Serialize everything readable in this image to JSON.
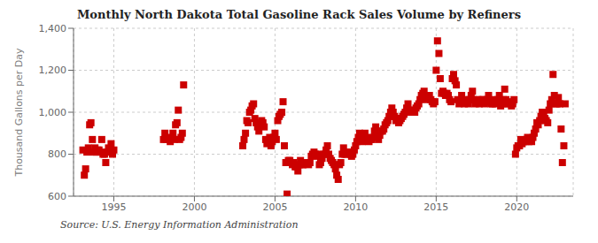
{
  "chart_data": {
    "type": "scatter",
    "title": "Monthly North Dakota Total Gasoline Rack Sales Volume by Refiners",
    "ylabel": "Thousand Gallons per Day",
    "annotations": [
      "Source: U.S. Energy Information Administration"
    ],
    "color": "#cc0000",
    "marker": "square",
    "grid": true,
    "xlim": [
      1992.5,
      2023.5
    ],
    "xticks": [
      1995,
      2000,
      2005,
      2010,
      2015,
      2020
    ],
    "ylim": [
      600,
      1400
    ],
    "yticks": [
      600,
      800,
      {
        "value": 1000,
        "label": "1,000"
      },
      {
        "value": 1200,
        "label": "1,200"
      },
      {
        "value": 1400,
        "label": "1,400"
      }
    ],
    "x": [
      1993.08,
      1993.17,
      1993.25,
      1993.33,
      1993.42,
      1993.5,
      1993.58,
      1993.67,
      1993.75,
      1993.83,
      1993.92,
      1994.0,
      1994.08,
      1994.17,
      1994.25,
      1994.33,
      1994.42,
      1994.5,
      1994.58,
      1994.67,
      1994.75,
      1994.83,
      1994.92,
      1995.0,
      1998.08,
      1998.17,
      1998.25,
      1998.33,
      1998.42,
      1998.5,
      1998.58,
      1998.67,
      1998.75,
      1998.83,
      1998.92,
      1999.0,
      1999.08,
      1999.17,
      1999.25,
      1999.33,
      2003.0,
      2003.08,
      2003.17,
      2003.25,
      2003.33,
      2003.42,
      2003.5,
      2003.58,
      2003.67,
      2003.75,
      2003.83,
      2003.92,
      2004.0,
      2004.08,
      2004.17,
      2004.25,
      2004.33,
      2004.42,
      2004.5,
      2004.58,
      2004.67,
      2004.75,
      2004.83,
      2004.92,
      2005.0,
      2005.08,
      2005.17,
      2005.25,
      2005.33,
      2005.42,
      2005.5,
      2005.58,
      2005.67,
      2005.75,
      2005.83,
      2005.92,
      2006.0,
      2006.08,
      2006.17,
      2006.25,
      2006.33,
      2006.42,
      2006.5,
      2006.58,
      2006.67,
      2006.75,
      2006.83,
      2006.92,
      2007.0,
      2007.08,
      2007.17,
      2007.25,
      2007.33,
      2007.42,
      2007.5,
      2007.58,
      2007.67,
      2007.75,
      2007.83,
      2007.92,
      2008.0,
      2008.08,
      2008.17,
      2008.25,
      2008.33,
      2008.42,
      2008.5,
      2008.58,
      2008.67,
      2008.75,
      2008.83,
      2008.92,
      2009.0,
      2009.08,
      2009.17,
      2009.25,
      2009.33,
      2009.42,
      2009.5,
      2009.58,
      2009.67,
      2009.75,
      2009.83,
      2009.92,
      2010.0,
      2010.08,
      2010.17,
      2010.25,
      2010.33,
      2010.42,
      2010.5,
      2010.58,
      2010.67,
      2010.75,
      2010.83,
      2010.92,
      2011.0,
      2011.08,
      2011.17,
      2011.25,
      2011.33,
      2011.42,
      2011.5,
      2011.58,
      2011.67,
      2011.75,
      2011.83,
      2011.92,
      2012.0,
      2012.08,
      2012.17,
      2012.25,
      2012.33,
      2012.42,
      2012.5,
      2012.58,
      2012.67,
      2012.75,
      2012.83,
      2012.92,
      2013.0,
      2013.08,
      2013.17,
      2013.25,
      2013.33,
      2013.42,
      2013.5,
      2013.58,
      2013.67,
      2013.75,
      2013.83,
      2013.92,
      2014.0,
      2014.08,
      2014.17,
      2014.25,
      2014.33,
      2014.42,
      2014.5,
      2014.58,
      2014.67,
      2014.75,
      2014.83,
      2014.92,
      2015.0,
      2015.08,
      2015.17,
      2015.25,
      2015.33,
      2015.42,
      2015.5,
      2015.58,
      2015.67,
      2015.75,
      2015.83,
      2015.92,
      2016.0,
      2016.08,
      2016.17,
      2016.25,
      2016.33,
      2016.42,
      2016.5,
      2016.58,
      2016.67,
      2016.75,
      2016.83,
      2016.92,
      2017.0,
      2017.08,
      2017.17,
      2017.25,
      2017.33,
      2017.42,
      2017.5,
      2017.58,
      2017.67,
      2017.75,
      2017.83,
      2017.92,
      2018.0,
      2018.08,
      2018.17,
      2018.25,
      2018.33,
      2018.42,
      2018.5,
      2018.58,
      2018.67,
      2018.75,
      2018.83,
      2018.92,
      2019.0,
      2019.08,
      2019.17,
      2019.25,
      2019.33,
      2019.42,
      2019.5,
      2019.58,
      2019.67,
      2019.75,
      2019.83,
      2019.92,
      2020.0,
      2020.08,
      2020.17,
      2020.25,
      2020.33,
      2020.42,
      2020.5,
      2020.58,
      2020.67,
      2020.75,
      2020.83,
      2020.92,
      2021.0,
      2021.08,
      2021.17,
      2021.25,
      2021.33,
      2021.42,
      2021.5,
      2021.58,
      2021.67,
      2021.75,
      2021.83,
      2021.92,
      2022.0,
      2022.08,
      2022.17,
      2022.25,
      2022.33,
      2022.42,
      2022.5,
      2022.58,
      2022.67,
      2022.75,
      2022.83,
      2022.92,
      2023.0
    ],
    "values": [
      820,
      700,
      730,
      810,
      830,
      940,
      950,
      870,
      810,
      830,
      810,
      820,
      820,
      810,
      870,
      800,
      800,
      760,
      810,
      830,
      810,
      850,
      800,
      820,
      870,
      900,
      870,
      870,
      870,
      860,
      880,
      900,
      870,
      940,
      950,
      1010,
      870,
      880,
      900,
      1130,
      840,
      870,
      900,
      960,
      950,
      1000,
      1010,
      1030,
      1040,
      970,
      950,
      930,
      910,
      940,
      960,
      950,
      930,
      870,
      850,
      860,
      880,
      840,
      860,
      880,
      900,
      870,
      960,
      980,
      990,
      1000,
      1050,
      840,
      760,
      610,
      770,
      770,
      760,
      750,
      760,
      740,
      740,
      720,
      750,
      770,
      750,
      750,
      760,
      760,
      760,
      750,
      760,
      790,
      800,
      810,
      800,
      800,
      790,
      750,
      760,
      780,
      800,
      800,
      820,
      840,
      800,
      780,
      770,
      760,
      750,
      730,
      700,
      680,
      750,
      760,
      800,
      830,
      800,
      800,
      810,
      810,
      800,
      790,
      800,
      820,
      840,
      860,
      880,
      900,
      870,
      860,
      870,
      900,
      880,
      870,
      860,
      870,
      870,
      880,
      910,
      930,
      900,
      870,
      890,
      910,
      910,
      920,
      940,
      950,
      960,
      980,
      1000,
      1020,
      1000,
      980,
      960,
      970,
      950,
      960,
      970,
      980,
      990,
      1000,
      1020,
      1040,
      1010,
      1000,
      1000,
      1010,
      1000,
      1020,
      1030,
      1040,
      1060,
      1080,
      1090,
      1100,
      1080,
      1060,
      1070,
      1080,
      1060,
      1050,
      1040,
      1050,
      1200,
      1340,
      1280,
      1160,
      1090,
      1100,
      1090,
      1080,
      1090,
      1080,
      1060,
      1050,
      1160,
      1180,
      1150,
      1130,
      1060,
      1040,
      1050,
      1080,
      1050,
      1040,
      1060,
      1050,
      1040,
      1060,
      1080,
      1100,
      1060,
      1040,
      1050,
      1060,
      1040,
      1050,
      1060,
      1060,
      1040,
      1050,
      1060,
      1080,
      1050,
      1040,
      1040,
      1060,
      1040,
      1050,
      1060,
      1080,
      1030,
      1040,
      1060,
      1110,
      1060,
      1040,
      1040,
      1050,
      1030,
      1040,
      1060,
      800,
      830,
      840,
      840,
      870,
      850,
      860,
      860,
      870,
      880,
      860,
      870,
      860,
      880,
      900,
      920,
      950,
      940,
      960,
      980,
      1000,
      980,
      970,
      960,
      950,
      1010,
      1040,
      1060,
      1180,
      1080,
      1040,
      1040,
      1070,
      1040,
      920,
      760,
      840,
      1040
    ]
  }
}
